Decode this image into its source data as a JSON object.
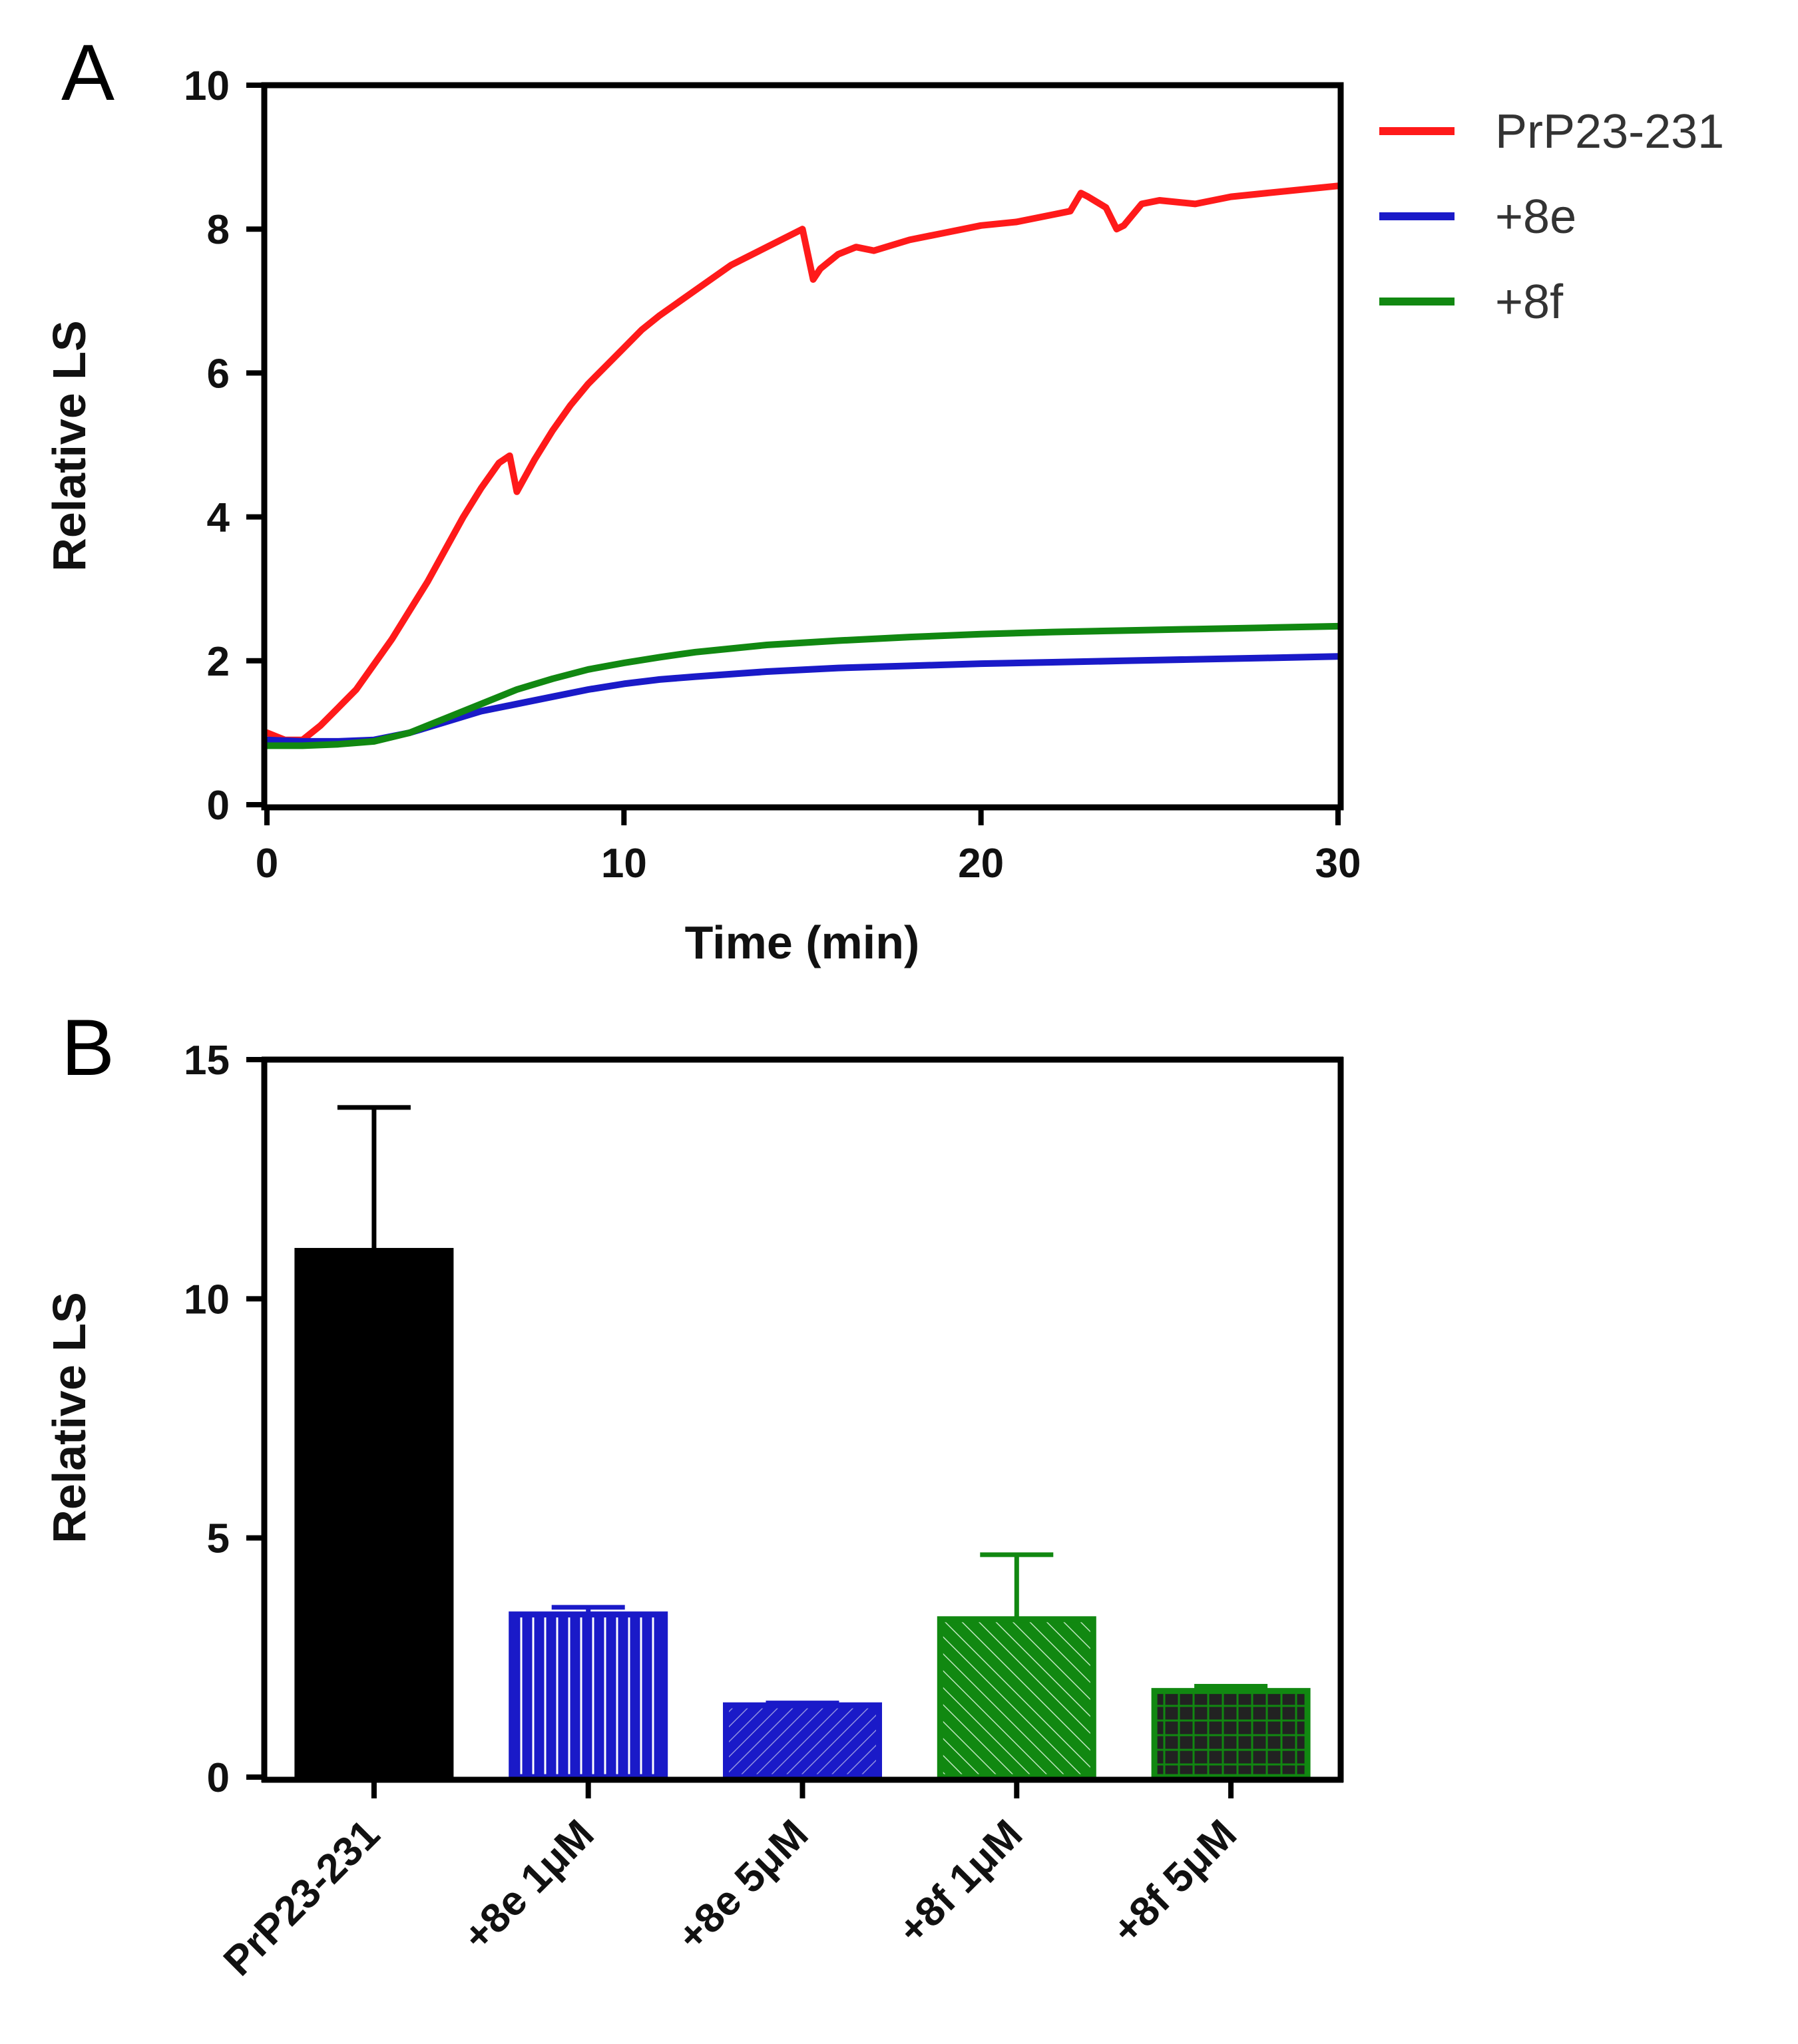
{
  "figure": {
    "panels": [
      "A",
      "B"
    ]
  },
  "chart_data": [
    {
      "panel": "A",
      "type": "line",
      "xlabel": "Time (min)",
      "ylabel": "Relative LS",
      "xlim": [
        0,
        30
      ],
      "ylim": [
        0,
        10
      ],
      "xticks": [
        0,
        10,
        20,
        30
      ],
      "yticks": [
        0,
        2,
        4,
        6,
        8,
        10
      ],
      "legend_position": "top-right, outside",
      "series": [
        {
          "name": "PrP23-231",
          "color": "#ff1a1a",
          "x": [
            0,
            0.5,
            1,
            1.5,
            2,
            2.5,
            3,
            3.5,
            4,
            4.5,
            5,
            5.5,
            6,
            6.5,
            6.8,
            7,
            7.5,
            8,
            8.5,
            9,
            9.5,
            10,
            10.5,
            11,
            12,
            13,
            14,
            15,
            15.3,
            15.5,
            16,
            16.5,
            17,
            18,
            19,
            20,
            21,
            22,
            22.5,
            22.8,
            23,
            23.5,
            23.8,
            24,
            24.5,
            25,
            26,
            27,
            28,
            29,
            30
          ],
          "y": [
            1.0,
            0.9,
            0.9,
            1.1,
            1.35,
            1.6,
            1.95,
            2.3,
            2.7,
            3.1,
            3.55,
            4.0,
            4.4,
            4.75,
            4.85,
            4.35,
            4.8,
            5.2,
            5.55,
            5.85,
            6.1,
            6.35,
            6.6,
            6.8,
            7.15,
            7.5,
            7.75,
            8.0,
            7.3,
            7.45,
            7.65,
            7.75,
            7.7,
            7.85,
            7.95,
            8.05,
            8.1,
            8.2,
            8.25,
            8.5,
            8.45,
            8.3,
            8.0,
            8.05,
            8.35,
            8.4,
            8.35,
            8.45,
            8.5,
            8.55,
            8.6
          ]
        },
        {
          "name": "+8e",
          "color": "#1a1ac8",
          "x": [
            0,
            1,
            2,
            3,
            4,
            5,
            6,
            7,
            8,
            9,
            10,
            11,
            12,
            14,
            16,
            18,
            20,
            22,
            24,
            26,
            28,
            30
          ],
          "y": [
            0.9,
            0.88,
            0.88,
            0.9,
            1.0,
            1.15,
            1.3,
            1.4,
            1.5,
            1.6,
            1.68,
            1.74,
            1.78,
            1.85,
            1.9,
            1.93,
            1.96,
            1.98,
            2.0,
            2.02,
            2.04,
            2.06
          ]
        },
        {
          "name": "+8f",
          "color": "#118811",
          "x": [
            0,
            1,
            2,
            3,
            4,
            5,
            6,
            7,
            8,
            9,
            10,
            11,
            12,
            14,
            16,
            18,
            20,
            22,
            24,
            26,
            28,
            30
          ],
          "y": [
            0.82,
            0.82,
            0.84,
            0.88,
            1.0,
            1.2,
            1.4,
            1.6,
            1.75,
            1.88,
            1.97,
            2.05,
            2.12,
            2.22,
            2.28,
            2.33,
            2.37,
            2.4,
            2.42,
            2.44,
            2.46,
            2.48
          ]
        }
      ]
    },
    {
      "panel": "B",
      "type": "bar",
      "ylabel": "Relative LS",
      "xlabel": "",
      "ylim": [
        0,
        15
      ],
      "yticks": [
        0,
        5,
        10,
        15
      ],
      "categories": [
        "PrP23-231",
        "+8e 1μM",
        "+8e 5μM",
        "+8f 1μM",
        "+8f 5μM"
      ],
      "values": [
        11.0,
        3.4,
        1.5,
        3.3,
        1.8
      ],
      "errors": [
        3.0,
        0.15,
        0.05,
        1.35,
        0.1
      ],
      "colors": [
        "#000000",
        "#1a1ac8",
        "#1a1ac8",
        "#118811",
        "#118811"
      ],
      "patterns": [
        "solid",
        "vertical-lines",
        "diagonal-lines",
        "diagonal-lines-reverse",
        "grid"
      ]
    }
  ]
}
